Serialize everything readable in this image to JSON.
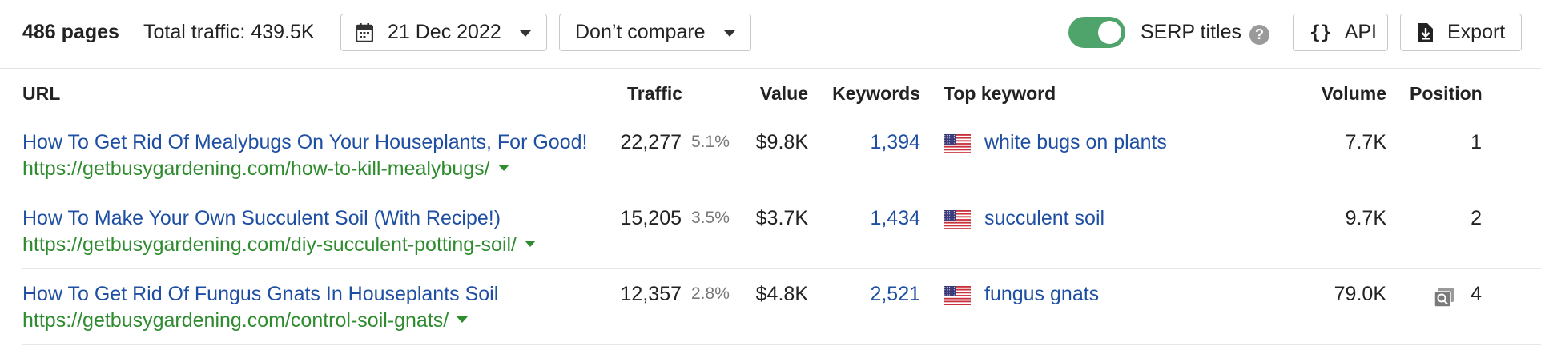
{
  "toolbar": {
    "pages": "486 pages",
    "total_traffic": "Total traffic: 439.5K",
    "date_label": "21 Dec 2022",
    "compare_label": "Don’t compare",
    "serp_titles_label": "SERP titles",
    "serp_titles_on": true,
    "help": "?",
    "api_label": "API",
    "export_label": "Export",
    "toggle_color": "#4fa46b"
  },
  "columns": {
    "url": "URL",
    "traffic": "Traffic",
    "value": "Value",
    "keywords": "Keywords",
    "top_keyword": "Top keyword",
    "volume": "Volume",
    "position": "Position"
  },
  "rows": [
    {
      "title": "How To Get Rid Of Mealybugs On Your Houseplants, For Good!",
      "url": "https://getbusygardening.com/how-to-kill-mealybugs/",
      "traffic": "22,277",
      "traffic_pct": "5.1%",
      "value": "$9.8K",
      "keywords": "1,394",
      "flag": "us-flag-icon",
      "top_keyword": "white bugs on plants",
      "volume": "7.7K",
      "position": "1"
    },
    {
      "title": "How To Make Your Own Succulent Soil (With Recipe!)",
      "url": "https://getbusygardening.com/diy-succulent-potting-soil/",
      "traffic": "15,205",
      "traffic_pct": "3.5%",
      "value": "$3.7K",
      "keywords": "1,434",
      "flag": "us-flag-icon",
      "top_keyword": "succulent soil",
      "volume": "9.7K",
      "position": "2"
    },
    {
      "title": "How To Get Rid Of Fungus Gnats In Houseplants Soil",
      "url": "https://getbusygardening.com/control-soil-gnats/",
      "traffic": "12,357",
      "traffic_pct": "2.8%",
      "value": "$4.8K",
      "keywords": "2,521",
      "flag": "us-flag-icon",
      "top_keyword": "fungus gnats",
      "volume": "79.0K",
      "position": "4",
      "serp_feature": "image-pack-icon"
    }
  ],
  "colors": {
    "link_blue": "#1f4fa3",
    "url_green": "#2e8b2e"
  }
}
